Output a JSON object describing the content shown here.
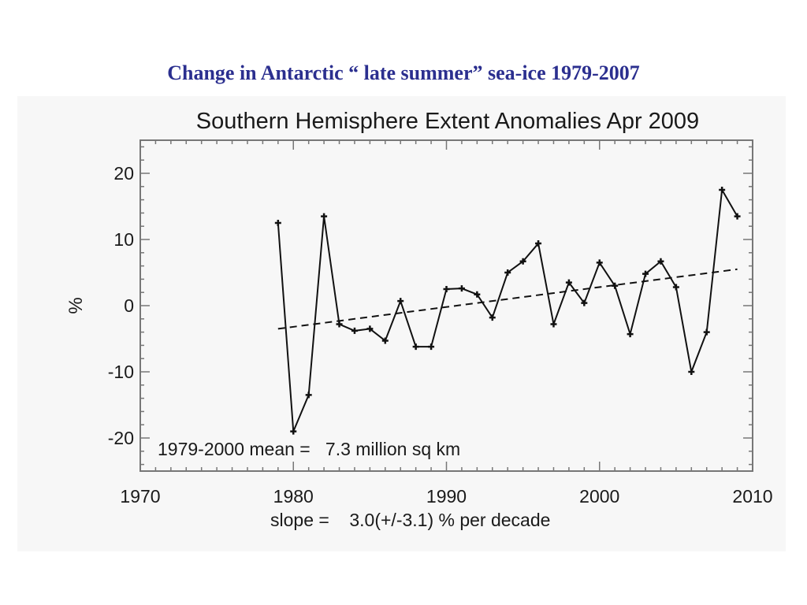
{
  "slide": {
    "title": "Change in Antarctic “ late summer” sea-ice 1979-2007"
  },
  "chart_data": {
    "type": "line",
    "title": "Southern Hemisphere Extent Anomalies Apr 2009",
    "xlabel": "",
    "ylabel": "%",
    "xlim": [
      1970,
      2010
    ],
    "ylim": [
      -25,
      25
    ],
    "x_ticks": [
      "1970",
      "1980",
      "1990",
      "2000",
      "2010"
    ],
    "y_ticks": [
      "20",
      "10",
      "0",
      "-10",
      "-20"
    ],
    "series": [
      {
        "x": [
          1979,
          1980,
          1981,
          1982,
          1983,
          1984,
          1985,
          1986,
          1987,
          1988,
          1989,
          1990,
          1991,
          1992,
          1993,
          1994,
          1995,
          1996,
          1997,
          1998,
          1999,
          2000,
          2001,
          2002,
          2003,
          2004,
          2005,
          2006,
          2007,
          2008,
          2009
        ],
        "y": [
          12.5,
          -19,
          -13.5,
          13.5,
          -2.8,
          -3.8,
          -3.5,
          -5.3,
          0.7,
          -6.2,
          -6.2,
          2.5,
          2.6,
          1.7,
          -1.8,
          5,
          6.7,
          9.4,
          -2.8,
          3.5,
          0.4,
          6.5,
          3,
          -4.3,
          4.8,
          6.7,
          2.8,
          -10,
          -4,
          17.5,
          13.5
        ]
      }
    ],
    "trend": {
      "x": [
        1979,
        2009
      ],
      "y": [
        -3.5,
        5.5
      ]
    },
    "annotations": {
      "mean": "1979-2000 mean =   7.3 million sq km",
      "slope": "slope =    3.0(+/-3.1) % per decade"
    },
    "grid": false,
    "legend": "none"
  }
}
